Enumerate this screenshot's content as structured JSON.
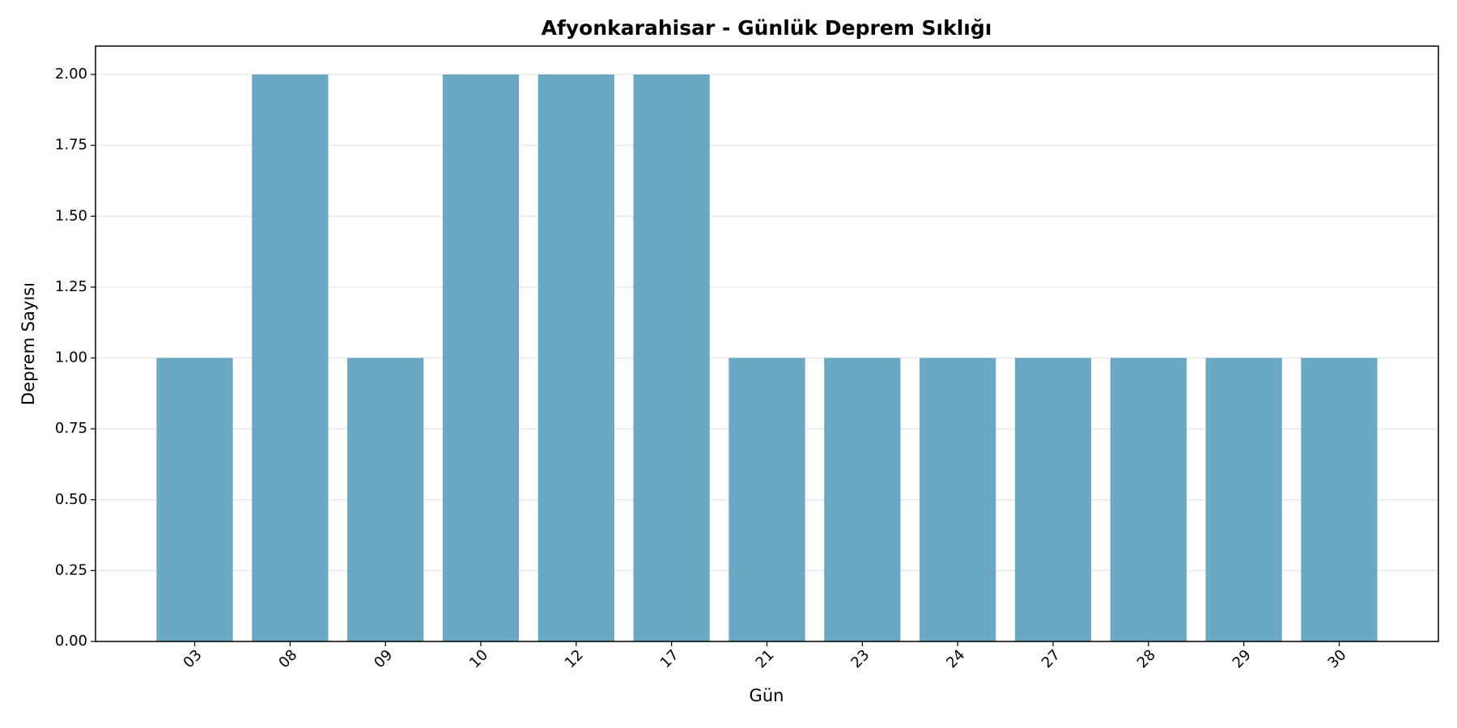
{
  "chart_data": {
    "type": "bar",
    "title": "Afyonkarahisar - Günlük Deprem Sıklığı",
    "x_label": "Gün",
    "y_label": "Deprem Sayısı",
    "categories": [
      "03",
      "08",
      "09",
      "10",
      "12",
      "17",
      "21",
      "23",
      "24",
      "27",
      "28",
      "29",
      "30"
    ],
    "values": [
      1,
      2,
      1,
      2,
      2,
      2,
      1,
      1,
      1,
      1,
      1,
      1,
      1
    ],
    "color": "#6aa8c4",
    "ylim": [
      0,
      2.1
    ],
    "yticks": [
      {
        "value": 0,
        "label": "0.00"
      },
      {
        "value": 0.25,
        "label": "0.25"
      },
      {
        "value": 0.5,
        "label": "0.50"
      },
      {
        "value": 0.75,
        "label": "0.75"
      },
      {
        "value": 1,
        "label": "1.00"
      },
      {
        "value": 1.25,
        "label": "1.25"
      },
      {
        "value": 1.5,
        "label": "1.50"
      },
      {
        "value": 1.75,
        "label": "1.75"
      },
      {
        "value": 2,
        "label": "2.00"
      }
    ],
    "grid": true
  }
}
